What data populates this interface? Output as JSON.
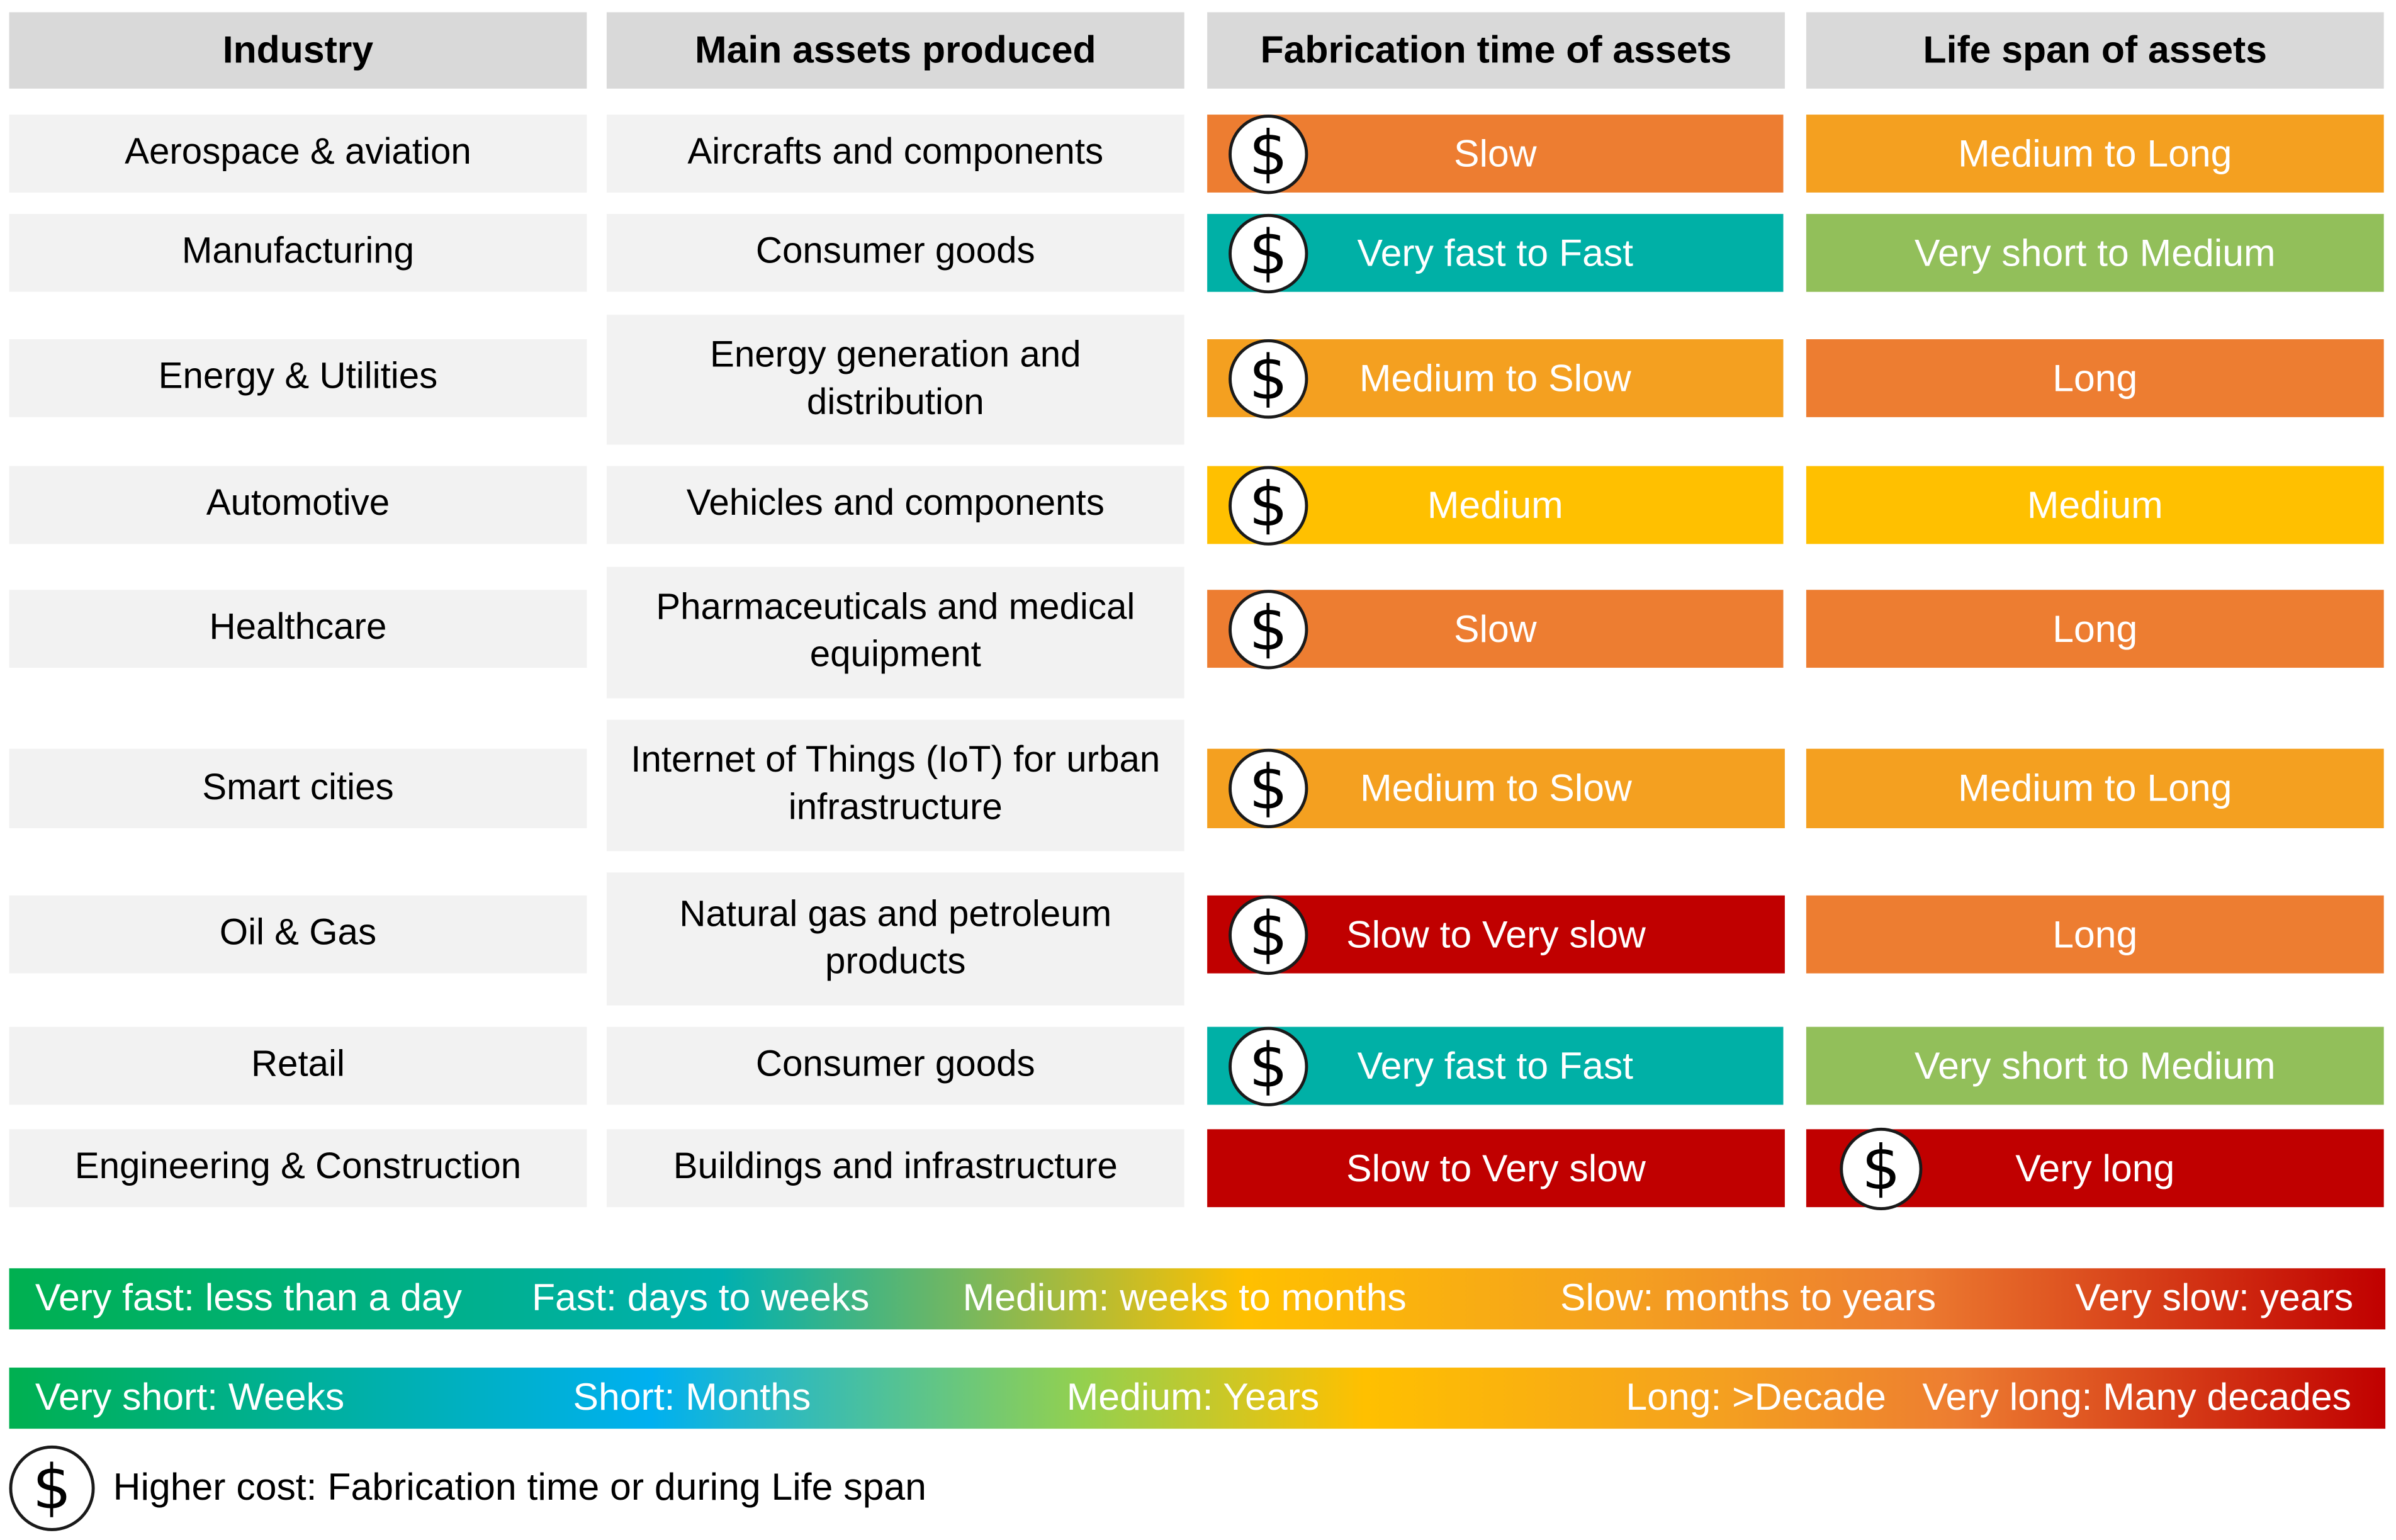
{
  "headers": [
    "Industry",
    "Main assets produced",
    "Fabrication time of assets",
    "Life span of assets"
  ],
  "colors": {
    "very_fast_fast": "#00b0a6",
    "medium": "#ffc000",
    "medium_slow": "#f4a020",
    "slow": "#ed7d31",
    "very_slow": "#c00000",
    "short_medium": "#92bf5a",
    "long": "#ed7d31"
  },
  "rows": [
    {
      "industry": "Aerospace & aviation",
      "assets": "Aircrafts and components",
      "fabrication": "Slow",
      "lifespan": "Medium to Long",
      "cost_marker": "fabrication"
    },
    {
      "industry": "Manufacturing",
      "assets": "Consumer goods",
      "fabrication": "Very fast to Fast",
      "lifespan": "Very short to Medium",
      "cost_marker": "fabrication"
    },
    {
      "industry": "Energy & Utilities",
      "assets": "Energy generation and distribution",
      "fabrication": "Medium to Slow",
      "lifespan": "Long",
      "cost_marker": "fabrication"
    },
    {
      "industry": "Automotive",
      "assets": "Vehicles and components",
      "fabrication": "Medium",
      "lifespan": "Medium",
      "cost_marker": "fabrication"
    },
    {
      "industry": "Healthcare",
      "assets": "Pharmaceuticals and medical equipment",
      "fabrication": "Slow",
      "lifespan": "Long",
      "cost_marker": "fabrication"
    },
    {
      "industry": "Smart cities",
      "assets": "Internet of Things (IoT) for urban infrastructure",
      "fabrication": "Medium to Slow",
      "lifespan": "Medium to Long",
      "cost_marker": "fabrication"
    },
    {
      "industry": "Oil & Gas",
      "assets": "Natural gas and petroleum products",
      "fabrication": "Slow to Very slow",
      "lifespan": "Long",
      "cost_marker": "fabrication"
    },
    {
      "industry": "Retail",
      "assets": "Consumer goods",
      "fabrication": "Very fast to Fast",
      "lifespan": "Very short to Medium",
      "cost_marker": "fabrication"
    },
    {
      "industry": "Engineering & Construction",
      "assets": "Buildings and infrastructure",
      "fabrication": "Slow to Very slow",
      "lifespan": "Very long",
      "cost_marker": "lifespan"
    }
  ],
  "fabrication_scale": [
    "Very fast: less than a day",
    "Fast: days to weeks",
    "Medium: weeks to months",
    "Slow: months to years",
    "Very slow: years"
  ],
  "lifespan_scale": [
    "Very short: Weeks",
    "Short: Months",
    "Medium: Years",
    "Long: >Decade",
    "Very long: Many decades"
  ],
  "cost_symbol": "$",
  "cost_note": "Higher cost: Fabrication time or during Life span"
}
